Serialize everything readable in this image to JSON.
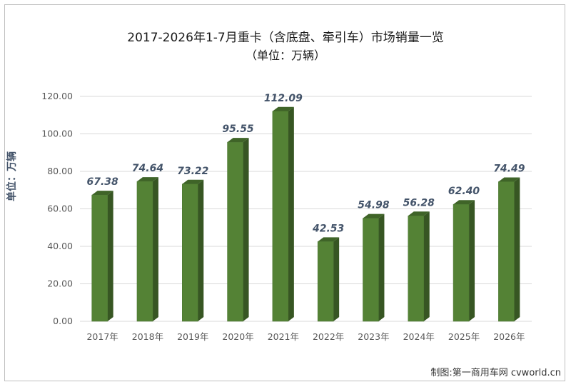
{
  "chart_data": {
    "type": "bar",
    "title": "2017-2026年1-7月重卡（含底盘、牵引车）市场销量一览",
    "subtitle": "（单位：万辆）",
    "ylabel": "单位：万辆",
    "xlabel": "",
    "categories": [
      "2017年",
      "2018年",
      "2019年",
      "2020年",
      "2021年",
      "2022年",
      "2023年",
      "2024年",
      "2025年",
      "2026年"
    ],
    "values": [
      67.38,
      74.64,
      73.22,
      95.55,
      112.09,
      42.53,
      54.98,
      56.28,
      62.4,
      74.49
    ],
    "value_labels": [
      "67.38",
      "74.64",
      "73.22",
      "95.55",
      "112.09",
      "42.53",
      "54.98",
      "56.28",
      "62.40",
      "74.49"
    ],
    "ylim": [
      0,
      120
    ],
    "yticks": [
      "0.00",
      "20.00",
      "40.00",
      "60.00",
      "80.00",
      "100.00",
      "120.00"
    ],
    "grid": true,
    "legend": "none",
    "bar_color": "#548235",
    "bar_side_color": "#375623",
    "bar_top_color": "#3f6428",
    "label_color": "#44546a"
  },
  "credit": "制图:第一商用车网 cvworld.cn"
}
